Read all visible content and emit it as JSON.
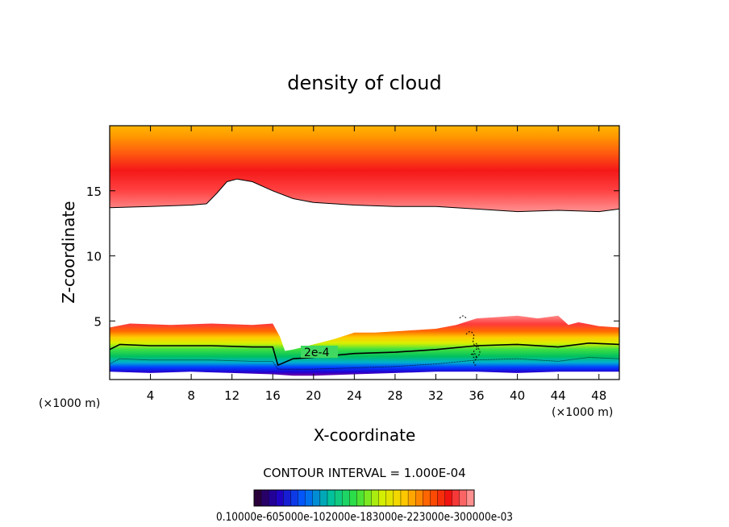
{
  "chart_data": {
    "type": "heatmap",
    "title": "density of cloud",
    "xlabel": "X-coordinate",
    "ylabel": "Z-coordinate",
    "x_unit_left": "(×1000 m)",
    "x_unit_right": "(×1000 m)",
    "xlim": [
      0,
      50
    ],
    "ylim": [
      0.5,
      20
    ],
    "xticks": [
      4,
      8,
      12,
      16,
      20,
      24,
      28,
      32,
      36,
      40,
      44,
      48
    ],
    "yticks": [
      5,
      10,
      15
    ],
    "contour_interval_text": "CONTOUR INTERVAL = 1.000E-04",
    "contour_label": "2e-4",
    "colorbar_label_text": "0.10000e-605000e-102000e-183000e-223000e-300000e-03",
    "colorbar_min": 0.0001,
    "colorbar_max": 0.003,
    "colorbar_levels": 30,
    "upper_layer_base_z": [
      [
        0,
        13.7
      ],
      [
        4,
        13.8
      ],
      [
        8,
        13.9
      ],
      [
        9.5,
        14.0
      ],
      [
        10.5,
        14.8
      ],
      [
        11.5,
        15.7
      ],
      [
        12.5,
        15.9
      ],
      [
        14,
        15.7
      ],
      [
        16,
        15.0
      ],
      [
        18,
        14.4
      ],
      [
        20,
        14.1
      ],
      [
        24,
        13.9
      ],
      [
        28,
        13.8
      ],
      [
        32,
        13.8
      ],
      [
        36,
        13.6
      ],
      [
        40,
        13.4
      ],
      [
        44,
        13.5
      ],
      [
        48,
        13.4
      ],
      [
        50,
        13.6
      ]
    ],
    "lower_layer_top_z": [
      [
        0,
        4.5
      ],
      [
        2,
        4.8
      ],
      [
        6,
        4.7
      ],
      [
        10,
        4.8
      ],
      [
        14,
        4.7
      ],
      [
        16,
        4.8
      ],
      [
        16.7,
        3.8
      ],
      [
        17.2,
        2.7
      ],
      [
        18,
        2.8
      ],
      [
        20,
        3.2
      ],
      [
        22,
        3.6
      ],
      [
        24,
        4.1
      ],
      [
        26,
        4.1
      ],
      [
        28,
        4.2
      ],
      [
        30,
        4.3
      ],
      [
        32,
        4.4
      ],
      [
        34,
        4.7
      ],
      [
        36,
        5.2
      ],
      [
        38,
        5.3
      ],
      [
        40,
        5.4
      ],
      [
        42,
        5.2
      ],
      [
        44,
        5.4
      ],
      [
        45,
        4.7
      ],
      [
        46,
        4.9
      ],
      [
        48,
        4.6
      ],
      [
        50,
        4.5
      ]
    ],
    "contour_2e4_z": [
      [
        0,
        2.8
      ],
      [
        1,
        3.2
      ],
      [
        4,
        3.1
      ],
      [
        10,
        3.1
      ],
      [
        14,
        3.0
      ],
      [
        16,
        3.0
      ],
      [
        16.5,
        1.6
      ],
      [
        18,
        2.1
      ],
      [
        20,
        2.2
      ],
      [
        24,
        2.5
      ],
      [
        28,
        2.6
      ],
      [
        32,
        2.8
      ],
      [
        36,
        3.1
      ],
      [
        40,
        3.2
      ],
      [
        44,
        3.0
      ],
      [
        47,
        3.3
      ],
      [
        50,
        3.2
      ]
    ],
    "lower_layer_bottom_z": [
      [
        0,
        1.1
      ],
      [
        4,
        1.0
      ],
      [
        8,
        1.1
      ],
      [
        12,
        1.0
      ],
      [
        16,
        0.9
      ],
      [
        18,
        0.8
      ],
      [
        20,
        0.8
      ],
      [
        24,
        0.9
      ],
      [
        28,
        1.0
      ],
      [
        32,
        1.1
      ],
      [
        36,
        1.1
      ],
      [
        40,
        1.0
      ],
      [
        44,
        1.1
      ],
      [
        50,
        1.1
      ]
    ]
  }
}
